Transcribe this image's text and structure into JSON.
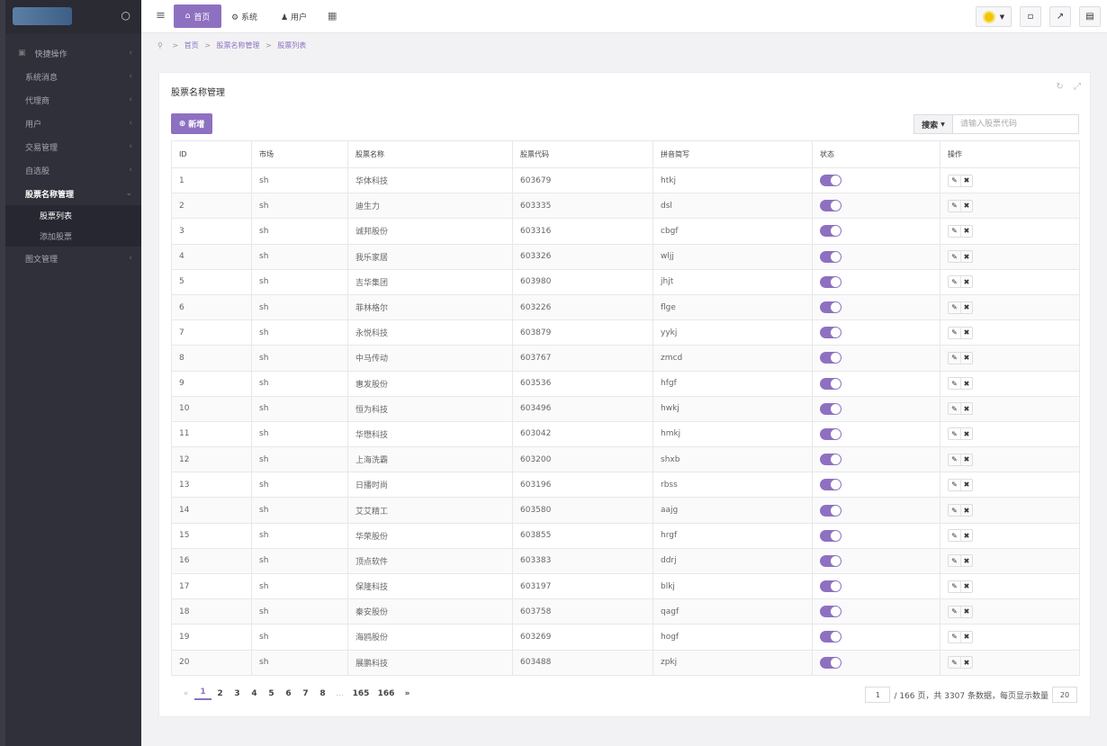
{
  "sidebar": {
    "items": [
      {
        "label": "快捷操作"
      },
      {
        "label": "系统消息"
      },
      {
        "label": "代理商"
      },
      {
        "label": "用户"
      },
      {
        "label": "交易管理"
      },
      {
        "label": "自选股"
      },
      {
        "label": "股票名称管理"
      },
      {
        "label": "股票列表"
      },
      {
        "label": "添加股票"
      },
      {
        "label": "图文管理"
      }
    ]
  },
  "topbar": {
    "home_label": "首页",
    "system_label": "系统",
    "user_label": "用户"
  },
  "breadcrumb": {
    "home": "首页",
    "section": "股票名称管理",
    "page": "股票列表"
  },
  "panel": {
    "title": "股票名称管理",
    "add_label": "新增",
    "search_label": "搜索",
    "search_placeholder": "请输入股票代码"
  },
  "table": {
    "headers": [
      "ID",
      "市场",
      "股票名称",
      "股票代码",
      "拼音简写",
      "状态",
      "操作"
    ],
    "rows": [
      [
        "1",
        "sh",
        "华体科技",
        "603679",
        "htkj"
      ],
      [
        "2",
        "sh",
        "迪生力",
        "603335",
        "dsl"
      ],
      [
        "3",
        "sh",
        "诚邦股份",
        "603316",
        "cbgf"
      ],
      [
        "4",
        "sh",
        "我乐家居",
        "603326",
        "wljj"
      ],
      [
        "5",
        "sh",
        "吉华集团",
        "603980",
        "jhjt"
      ],
      [
        "6",
        "sh",
        "菲林格尔",
        "603226",
        "flge"
      ],
      [
        "7",
        "sh",
        "永悦科技",
        "603879",
        "yykj"
      ],
      [
        "8",
        "sh",
        "中马传动",
        "603767",
        "zmcd"
      ],
      [
        "9",
        "sh",
        "惠发股份",
        "603536",
        "hfgf"
      ],
      [
        "10",
        "sh",
        "恒为科技",
        "603496",
        "hwkj"
      ],
      [
        "11",
        "sh",
        "华懋科技",
        "603042",
        "hmkj"
      ],
      [
        "12",
        "sh",
        "上海洗霸",
        "603200",
        "shxb"
      ],
      [
        "13",
        "sh",
        "日播时尚",
        "603196",
        "rbss"
      ],
      [
        "14",
        "sh",
        "艾艾精工",
        "603580",
        "aajg"
      ],
      [
        "15",
        "sh",
        "华荣股份",
        "603855",
        "hrgf"
      ],
      [
        "16",
        "sh",
        "顶点软件",
        "603383",
        "ddrj"
      ],
      [
        "17",
        "sh",
        "保隆科技",
        "603197",
        "blkj"
      ],
      [
        "18",
        "sh",
        "秦安股份",
        "603758",
        "qagf"
      ],
      [
        "19",
        "sh",
        "海鸥股份",
        "603269",
        "hogf"
      ],
      [
        "20",
        "sh",
        "展鹏科技",
        "603488",
        "zpkj"
      ]
    ]
  },
  "pagination": {
    "prev": "«",
    "pages": [
      "1",
      "2",
      "3",
      "4",
      "5",
      "6",
      "7",
      "8"
    ],
    "ellipsis": "...",
    "last_pages": [
      "165",
      "166"
    ],
    "next": "»",
    "current_page": "1",
    "total_text": "/ 166 页，共 3307 条数据，每页显示数量",
    "page_size": "20"
  },
  "colors": {
    "accent": "#8e70c1",
    "sidebar_bg": "#2f3039"
  }
}
